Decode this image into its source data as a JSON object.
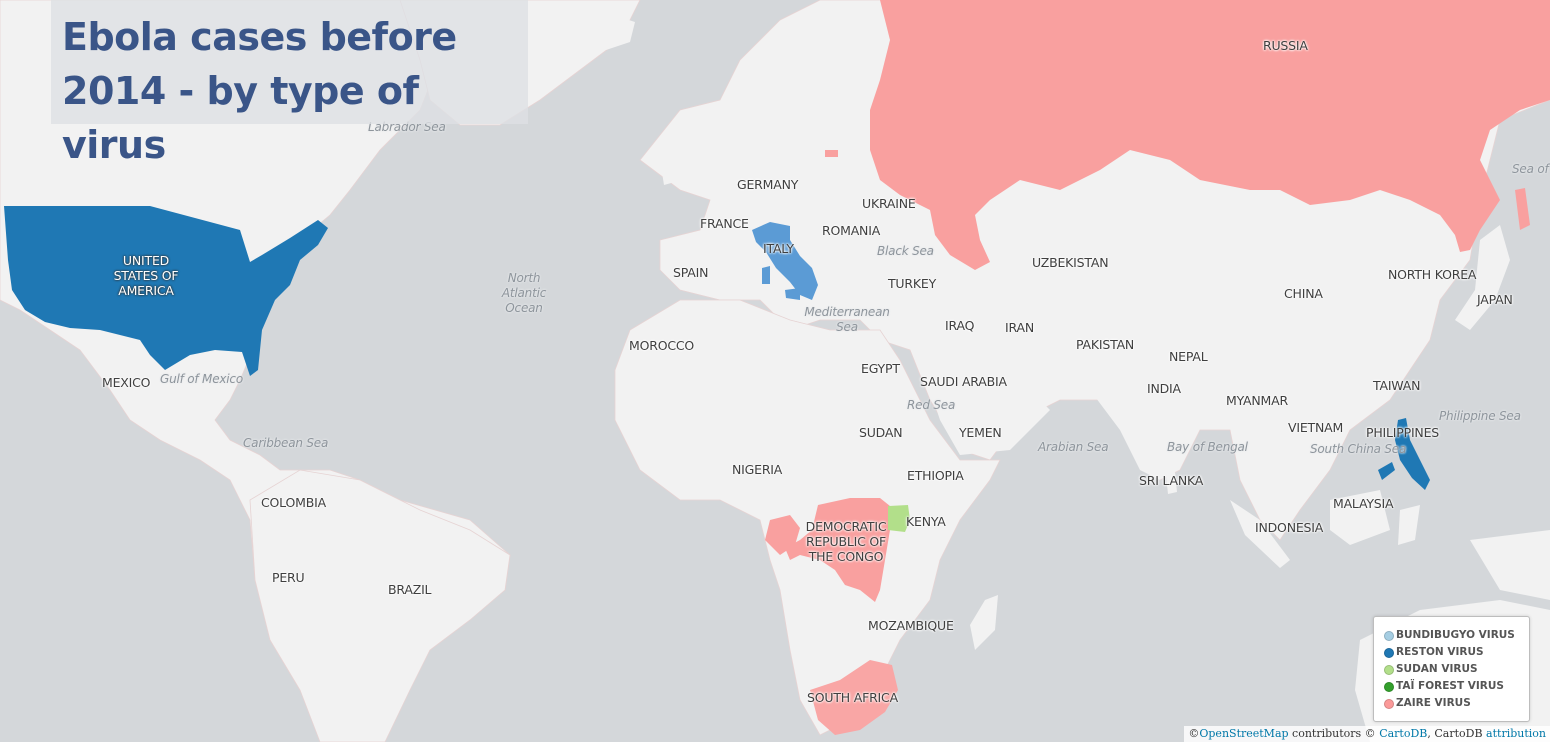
{
  "title": "Ebola cases before 2014 - by type of virus",
  "colors": {
    "ocean": "#d4d7da",
    "land": "#f2f2f2",
    "border": "#e3c9c9",
    "bundibugyo": "#a6cee3",
    "reston": "#1f78b4",
    "sudan": "#b2df8a",
    "tai_forest": "#33a02c",
    "zaire": "#fb9a99"
  },
  "legend": {
    "items": [
      {
        "label": "BUNDIBUGYO VIRUS",
        "color": "#a6cee3"
      },
      {
        "label": "RESTON VIRUS",
        "color": "#1f78b4"
      },
      {
        "label": "SUDAN VIRUS",
        "color": "#b2df8a"
      },
      {
        "label": "TAÏ FOREST VIRUS",
        "color": "#33a02c"
      },
      {
        "label": "ZAIRE VIRUS",
        "color": "#fb9a99"
      }
    ]
  },
  "labels": {
    "russia": "RUSSIA",
    "germany": "GERMANY",
    "ukraine": "UKRAINE",
    "france": "FRANCE",
    "romania": "ROMANIA",
    "italy": "ITALY",
    "spain": "SPAIN",
    "black_sea": "Black Sea",
    "turkey": "TURKEY",
    "uzbekistan": "UZBEKISTAN",
    "north_korea": "NORTH KOREA",
    "japan": "JAPAN",
    "china": "CHINA",
    "usa": "UNITED\nSTATES OF\nAMERICA",
    "north_atlantic": "North\nAtlantic\nOcean",
    "labrador_sea": "Labrador Sea",
    "mediterranean": "Mediterranean\nSea",
    "morocco": "MOROCCO",
    "iraq": "IRAQ",
    "iran": "IRAN",
    "pakistan": "PAKISTAN",
    "nepal": "NEPAL",
    "egypt": "EGYPT",
    "saudi_arabia": "SAUDI ARABIA",
    "mexico": "MEXICO",
    "gulf_of_mexico": "Gulf of Mexico",
    "india": "INDIA",
    "taiwan": "TAIWAN",
    "myanmar": "MYANMAR",
    "red_sea": "Red Sea",
    "philippine_sea": "Philippine Sea",
    "caribbean_sea": "Caribbean  Sea",
    "sudan": "SUDAN",
    "yemen": "YEMEN",
    "arabian_sea": "Arabian Sea",
    "bay_of_bengal": "Bay of Bengal",
    "vietnam": "VIETNAM",
    "philippines": "PHILIPPINES",
    "south_china_sea": "South China Sea",
    "nigeria": "NIGERIA",
    "ethiopia": "ETHIOPIA",
    "sri_lanka": "SRI LANKA",
    "colombia": "COLOMBIA",
    "malaysia": "MALAYSIA",
    "drc": "DEMOCRATIC\nREPUBLIC OF\nTHE CONGO",
    "kenya": "KENYA",
    "indonesia": "INDONESIA",
    "peru": "PERU",
    "brazil": "BRAZIL",
    "mozambique": "MOZAMBIQUE",
    "south_africa": "SOUTH AFRICA",
    "sea_of": "Sea of"
  },
  "attribution": {
    "prefix": "©",
    "osm": "OpenStreetMap",
    "contributors": " contributors © ",
    "cartodb": "CartoDB",
    "sep": ", CartoDB ",
    "attribution": "attribution"
  }
}
